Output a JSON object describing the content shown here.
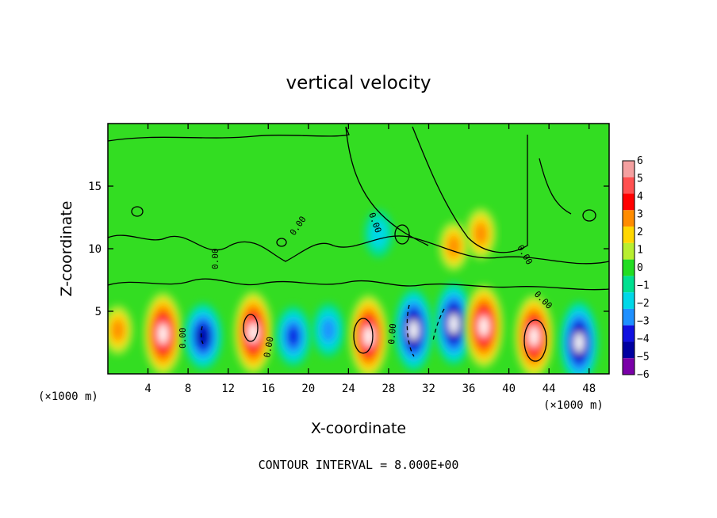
{
  "chart_data": {
    "type": "heatmap",
    "title": "vertical velocity",
    "xlabel": "X-coordinate",
    "ylabel": "Z-coordinate",
    "x_unit_left": "(×1000 m)",
    "x_unit_right": "(×1000 m)",
    "x_ticks": [
      4,
      8,
      12,
      16,
      20,
      24,
      28,
      32,
      36,
      40,
      44,
      48
    ],
    "y_ticks": [
      5,
      10,
      15
    ],
    "xlim": [
      0,
      50
    ],
    "ylim": [
      0,
      20
    ],
    "footer": "CONTOUR INTERVAL = 8.000E+00",
    "contour_label": "0.00",
    "colorbar": {
      "labels": [
        "6",
        "5",
        "4",
        "3",
        "2",
        "1",
        "0",
        "−1",
        "−2",
        "−3",
        "−4",
        "−5",
        "−6"
      ],
      "colors": [
        "#f4a0a0",
        "#ff5050",
        "#ff0000",
        "#ff8c00",
        "#ffd700",
        "#b8ee30",
        "#22dd22",
        "#00e090",
        "#00d8e8",
        "#1e90ff",
        "#1010e0",
        "#0000a0",
        "#7a00a8"
      ]
    },
    "cells": [
      {
        "x": 1.0,
        "z": 3.5,
        "w": 2.2
      },
      {
        "x": 5.5,
        "z": 3.2,
        "w": 10
      },
      {
        "x": 9.5,
        "z": 3.0,
        "w": -5
      },
      {
        "x": 14.5,
        "z": 3.3,
        "w": 11
      },
      {
        "x": 18.5,
        "z": 3.0,
        "w": -4
      },
      {
        "x": 22.0,
        "z": 3.5,
        "w": -3
      },
      {
        "x": 26.0,
        "z": 3.0,
        "w": 11
      },
      {
        "x": 30.5,
        "z": 3.5,
        "w": -9
      },
      {
        "x": 34.5,
        "z": 4.0,
        "w": -7
      },
      {
        "x": 37.5,
        "z": 3.8,
        "w": 8
      },
      {
        "x": 42.5,
        "z": 3.0,
        "w": 10
      },
      {
        "x": 47.0,
        "z": 2.5,
        "w": -8
      },
      {
        "x": 37.2,
        "z": 11.2,
        "w": 2.5
      },
      {
        "x": 34.5,
        "z": 10.2,
        "w": 2.2
      },
      {
        "x": 27.0,
        "z": 11.2,
        "w": -2
      }
    ]
  }
}
